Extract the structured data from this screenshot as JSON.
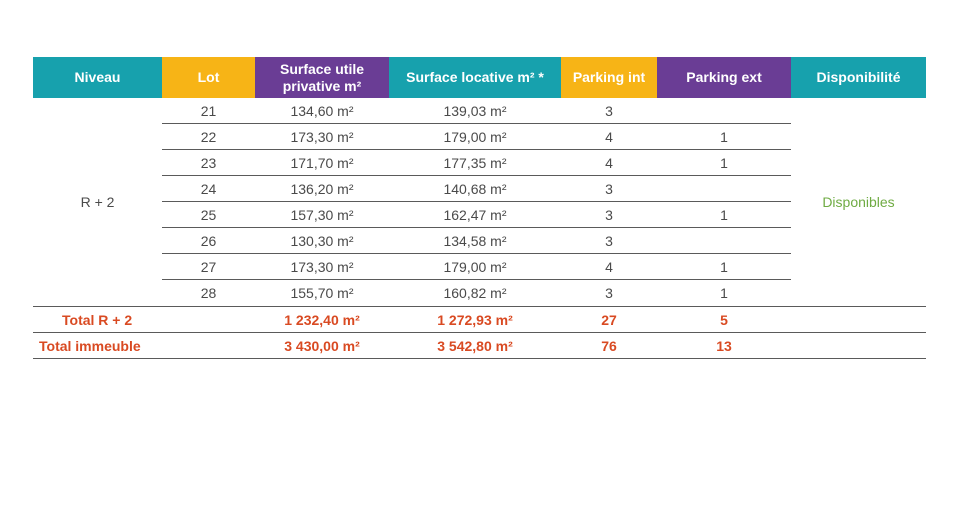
{
  "colors": {
    "teal": "#17a1ad",
    "orange": "#f7b416",
    "purple": "#6a3d95",
    "total_red": "#d94a22",
    "available_green": "#6fab43",
    "text_gray": "#4a4a4a"
  },
  "headers": {
    "niveau": "Niveau",
    "lot": "Lot",
    "surface_utile": "Surface utile privative m²",
    "surface_locative": "Surface locative m² *",
    "parking_int": "Parking int",
    "parking_ext": "Parking ext",
    "disponibilite": "Disponibilité"
  },
  "niveau": "R + 2",
  "disponibilite": "Disponibles",
  "rows": [
    {
      "lot": "21",
      "surface_utile": "134,60 m²",
      "surface_locative": "139,03 m²",
      "parking_int": "3",
      "parking_ext": ""
    },
    {
      "lot": "22",
      "surface_utile": "173,30 m²",
      "surface_locative": "179,00 m²",
      "parking_int": "4",
      "parking_ext": "1"
    },
    {
      "lot": "23",
      "surface_utile": "171,70 m²",
      "surface_locative": "177,35 m²",
      "parking_int": "4",
      "parking_ext": "1"
    },
    {
      "lot": "24",
      "surface_utile": "136,20 m²",
      "surface_locative": "140,68 m²",
      "parking_int": "3",
      "parking_ext": ""
    },
    {
      "lot": "25",
      "surface_utile": "157,30 m²",
      "surface_locative": "162,47 m²",
      "parking_int": "3",
      "parking_ext": "1"
    },
    {
      "lot": "26",
      "surface_utile": "130,30 m²",
      "surface_locative": "134,58 m²",
      "parking_int": "3",
      "parking_ext": ""
    },
    {
      "lot": "27",
      "surface_utile": "173,30 m²",
      "surface_locative": "179,00 m²",
      "parking_int": "4",
      "parking_ext": "1"
    },
    {
      "lot": "28",
      "surface_utile": "155,70 m²",
      "surface_locative": "160,82 m²",
      "parking_int": "3",
      "parking_ext": "1"
    }
  ],
  "totals": [
    {
      "label": "Total R + 2",
      "surface_utile": "1 232,40 m²",
      "surface_locative": "1 272,93 m²",
      "parking_int": "27",
      "parking_ext": "5"
    },
    {
      "label": "Total immeuble",
      "surface_utile": "3 430,00 m²",
      "surface_locative": "3 542,80 m²",
      "parking_int": "76",
      "parking_ext": "13"
    }
  ]
}
